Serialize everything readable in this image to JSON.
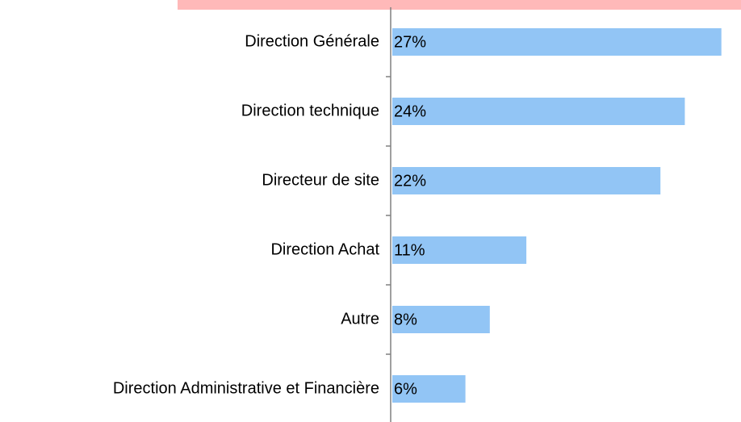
{
  "chart_data": {
    "type": "barh",
    "categories": [
      "Direction Générale",
      "Direction technique",
      "Directeur de site",
      "Direction Achat",
      "Autre",
      "Direction Administrative et Financière"
    ],
    "values": [
      27,
      24,
      22,
      11,
      8,
      6
    ],
    "value_labels": [
      "27%",
      "24%",
      "22%",
      "11%",
      "8%",
      "6%"
    ],
    "color": "#92c5f5"
  }
}
